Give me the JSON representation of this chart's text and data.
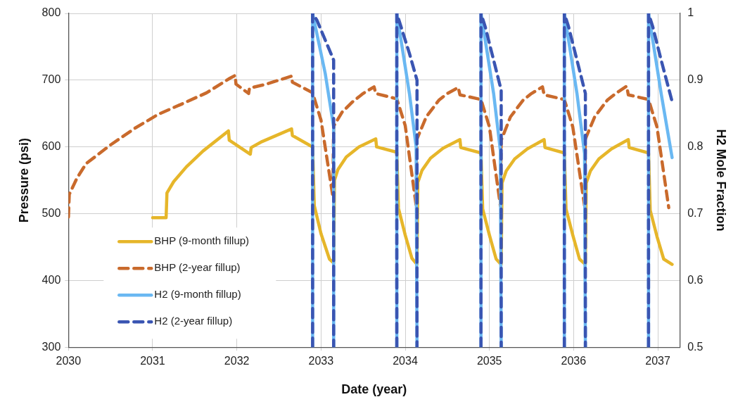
{
  "chart_data": {
    "type": "line",
    "xlabel": "Date (year)",
    "ylabel": "Pressure (psi)",
    "y2label": "H2 Mole Fraction",
    "xlim": [
      2030,
      2037.26
    ],
    "xticks": [
      2030,
      2031,
      2032,
      2033,
      2034,
      2035,
      2036,
      2037
    ],
    "ylim": [
      300,
      800
    ],
    "yticks": [
      300,
      400,
      500,
      600,
      700,
      800
    ],
    "y2lim": [
      0.5,
      1
    ],
    "y2ticks": [
      0.5,
      0.6,
      0.7,
      0.8,
      0.9,
      1
    ],
    "grid": true,
    "legend": "bottom left",
    "marker": "none",
    "series": [
      {
        "name": "BHP (9-month fillup)",
        "color": "#e6b62a",
        "line_style": "solid",
        "x": [
          2031.0,
          2031.16,
          2031.17,
          2031.25,
          2031.4,
          2031.6,
          2031.9,
          2031.91,
          2032.16,
          2032.17,
          2032.3,
          2032.65,
          2032.66,
          2032.9,
          2032.92,
          2033.0,
          2033.1,
          2033.15,
          2033.16,
          2033.2,
          2033.3,
          2033.45,
          2033.65,
          2033.66,
          2033.9,
          2033.92,
          2034.0,
          2034.08,
          2034.14,
          2034.15,
          2034.2,
          2034.3,
          2034.45,
          2034.65,
          2034.66,
          2034.9,
          2034.92,
          2035.0,
          2035.08,
          2035.14,
          2035.15,
          2035.2,
          2035.3,
          2035.45,
          2035.65,
          2035.66,
          2035.89,
          2035.91,
          2035.99,
          2036.07,
          2036.14,
          2036.15,
          2036.2,
          2036.3,
          2036.45,
          2036.65,
          2036.66,
          2036.89,
          2036.91,
          2036.99,
          2037.07,
          2037.17
        ],
        "values": [
          494,
          494,
          531,
          548,
          570,
          594,
          624,
          610,
          589,
          599,
          608,
          627,
          617,
          600,
          512,
          470,
          432,
          426,
          550,
          566,
          585,
          600,
          612,
          600,
          592,
          508,
          468,
          433,
          424,
          547,
          565,
          583,
          598,
          611,
          599,
          591,
          507,
          468,
          432,
          424,
          546,
          564,
          582,
          597,
          611,
          599,
          591,
          507,
          468,
          432,
          424,
          546,
          564,
          582,
          597,
          611,
          599,
          591,
          505,
          466,
          432,
          424
        ]
      },
      {
        "name": "BHP (2-year fillup)",
        "color": "#c96a2c",
        "line_style": "dashed",
        "x": [
          2030.0,
          2030.01,
          2030.1,
          2030.21,
          2030.5,
          2030.79,
          2031.07,
          2031.36,
          2031.64,
          2031.92,
          2031.98,
          2031.99,
          2032.14,
          2032.15,
          2032.35,
          2032.65,
          2032.66,
          2032.9,
          2033.0,
          2033.14,
          2033.15,
          2033.25,
          2033.37,
          2033.5,
          2033.63,
          2033.65,
          2033.9,
          2034.0,
          2034.13,
          2034.14,
          2034.25,
          2034.4,
          2034.5,
          2034.63,
          2034.65,
          2034.9,
          2035.0,
          2035.13,
          2035.14,
          2035.25,
          2035.4,
          2035.5,
          2035.63,
          2035.65,
          2035.89,
          2035.99,
          2036.13,
          2036.14,
          2036.25,
          2036.4,
          2036.5,
          2036.63,
          2036.65,
          2036.89,
          2036.99,
          2037.13
        ],
        "values": [
          495,
          529,
          553,
          575,
          603,
          628,
          649,
          665,
          681,
          703,
          707,
          694,
          680,
          688,
          694,
          706,
          697,
          681,
          640,
          526,
          631,
          652,
          667,
          680,
          690,
          680,
          672,
          632,
          512,
          612,
          645,
          670,
          680,
          689,
          678,
          671,
          630,
          512,
          610,
          645,
          670,
          680,
          690,
          678,
          671,
          630,
          512,
          612,
          645,
          670,
          680,
          691,
          678,
          671,
          630,
          509
        ]
      },
      {
        "name": "H2 (9-month fillup)",
        "color": "#6ab8f2",
        "line_style": "solid",
        "axis": "y2",
        "x": [
          2032.9,
          2032.9,
          2032.95,
          2033.05,
          2033.15,
          2033.15,
          2033.16,
          2033.9,
          2033.9,
          2033.95,
          2034.05,
          2034.13,
          2034.14,
          2034.15,
          2034.9,
          2034.9,
          2034.95,
          2035.05,
          2035.13,
          2035.14,
          2035.15,
          2035.89,
          2035.89,
          2035.94,
          2036.04,
          2036.13,
          2036.14,
          2036.15,
          2036.89,
          2036.89,
          2036.94,
          2037.04,
          2037.17
        ],
        "values": [
          0.5,
          1.0,
          0.97,
          0.91,
          0.83,
          0.5,
          null,
          0.5,
          1.0,
          0.96,
          0.88,
          0.8,
          0.5,
          null,
          0.5,
          1.0,
          0.96,
          0.88,
          0.795,
          0.5,
          null,
          0.5,
          1.0,
          0.96,
          0.88,
          0.79,
          0.5,
          null,
          0.5,
          1.0,
          0.96,
          0.88,
          0.784
        ]
      },
      {
        "name": "H2 (2-year fillup)",
        "color": "#3a55b2",
        "line_style": "dashed",
        "axis": "y2",
        "x": [
          2032.9,
          2032.9,
          2032.95,
          2033.05,
          2033.15,
          2033.15,
          2033.16,
          2033.9,
          2033.9,
          2033.95,
          2034.05,
          2034.14,
          2034.14,
          2034.15,
          2034.9,
          2034.9,
          2034.95,
          2035.05,
          2035.14,
          2035.14,
          2035.15,
          2035.89,
          2035.89,
          2035.94,
          2036.04,
          2036.14,
          2036.14,
          2036.15,
          2036.89,
          2036.89,
          2036.94,
          2037.04,
          2037.17
        ],
        "values": [
          0.5,
          1.0,
          0.99,
          0.96,
          0.93,
          0.5,
          null,
          0.5,
          1.0,
          0.98,
          0.94,
          0.9,
          0.5,
          null,
          0.5,
          1.0,
          0.98,
          0.93,
          0.885,
          0.5,
          null,
          0.5,
          1.0,
          0.98,
          0.93,
          0.88,
          0.5,
          null,
          0.5,
          1.0,
          0.98,
          0.93,
          0.868
        ]
      }
    ]
  }
}
